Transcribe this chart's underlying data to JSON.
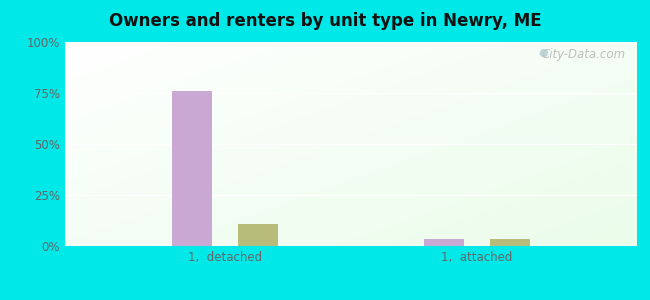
{
  "title": "Owners and renters by unit type in Newry, ME",
  "categories": [
    "1,  detached",
    "1,  attached"
  ],
  "owner_values": [
    76,
    3.5
  ],
  "renter_values": [
    11,
    3.5
  ],
  "owner_color": "#c9a8d4",
  "renter_color": "#b8bc7a",
  "ylim": [
    0,
    100
  ],
  "yticks": [
    0,
    25,
    50,
    75,
    100
  ],
  "ytick_labels": [
    "0%",
    "25%",
    "50%",
    "75%",
    "100%"
  ],
  "outer_bg": "#00e8e8",
  "watermark": "City-Data.com",
  "group_positions": [
    0.28,
    0.72
  ],
  "bar_width": 0.07,
  "bar_gap": 0.045
}
